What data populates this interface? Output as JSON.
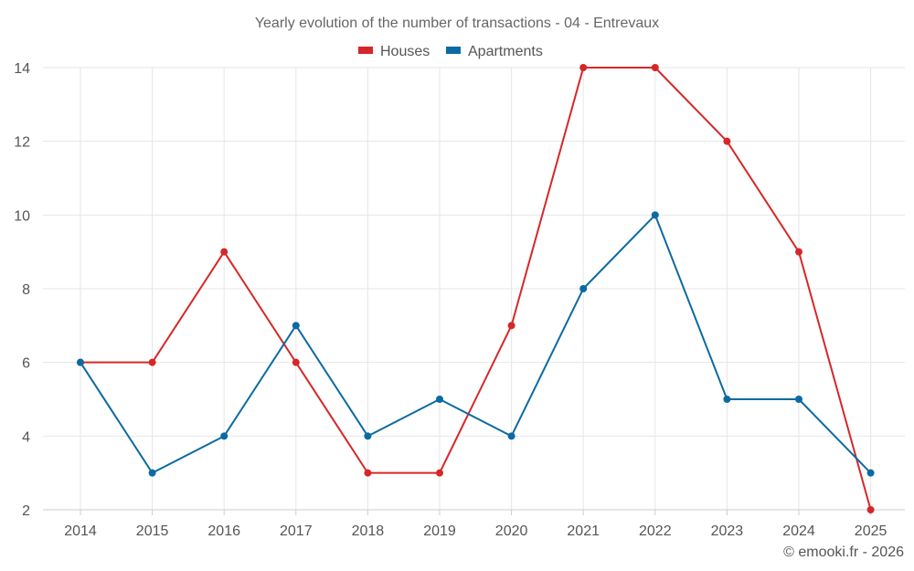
{
  "chart_data": {
    "type": "line",
    "title": "Yearly evolution of the number of transactions - 04 - Entrevaux",
    "categories": [
      "2014",
      "2015",
      "2016",
      "2017",
      "2018",
      "2019",
      "2020",
      "2021",
      "2022",
      "2023",
      "2024",
      "2025"
    ],
    "series": [
      {
        "name": "Houses",
        "color": "#d62728",
        "values": [
          6,
          6,
          9,
          6,
          3,
          3,
          7,
          14,
          14,
          12,
          9,
          2
        ]
      },
      {
        "name": "Apartments",
        "color": "#0b6aa2",
        "values": [
          6,
          3,
          4,
          7,
          4,
          5,
          4,
          8,
          10,
          5,
          5,
          3
        ]
      }
    ],
    "ylim": [
      2,
      14
    ],
    "yticks": [
      "2",
      "4",
      "6",
      "8",
      "10",
      "12",
      "14"
    ],
    "grid": true,
    "legend": "top-center",
    "xlabel": "",
    "ylabel": ""
  },
  "credit": "© emooki.fr - 2026"
}
